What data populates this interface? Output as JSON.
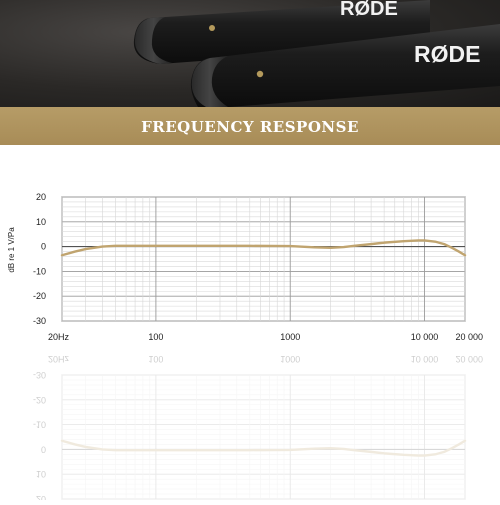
{
  "hero": {
    "brand_label_1": "RØDE",
    "brand_label_2": "RØDE"
  },
  "banner": {
    "title": "FREQUENCY RESPONSE",
    "color": "#aa8e59"
  },
  "chart_data": {
    "type": "line",
    "title": "",
    "xlabel": "",
    "ylabel": "dB re 1 V/Pa",
    "xscale": "log",
    "xlim": [
      20,
      20000
    ],
    "ylim": [
      -30,
      20
    ],
    "x_ticks": [
      {
        "value": 20,
        "label": "20Hz"
      },
      {
        "value": 100,
        "label": "100"
      },
      {
        "value": 1000,
        "label": "1000"
      },
      {
        "value": 10000,
        "label": "10 000"
      },
      {
        "value": 20000,
        "label": "20 000"
      }
    ],
    "y_ticks": [
      20,
      10,
      0,
      -10,
      -20,
      -30
    ],
    "grid": true,
    "line_color": "#c0a46f",
    "series": [
      {
        "x": [
          20,
          25,
          30,
          40,
          50,
          70,
          100,
          200,
          500,
          1000,
          1500,
          2000,
          2500,
          3000,
          4000,
          5000,
          7000,
          9000,
          10000,
          12000,
          14000,
          16000,
          18000,
          20000
        ],
        "y": [
          -3.5,
          -2.0,
          -1.0,
          0.0,
          0.3,
          0.3,
          0.3,
          0.3,
          0.3,
          0.2,
          -0.3,
          -0.5,
          -0.2,
          0.3,
          1.0,
          1.6,
          2.2,
          2.5,
          2.5,
          2.0,
          1.0,
          -0.5,
          -2.0,
          -3.5
        ]
      }
    ]
  }
}
